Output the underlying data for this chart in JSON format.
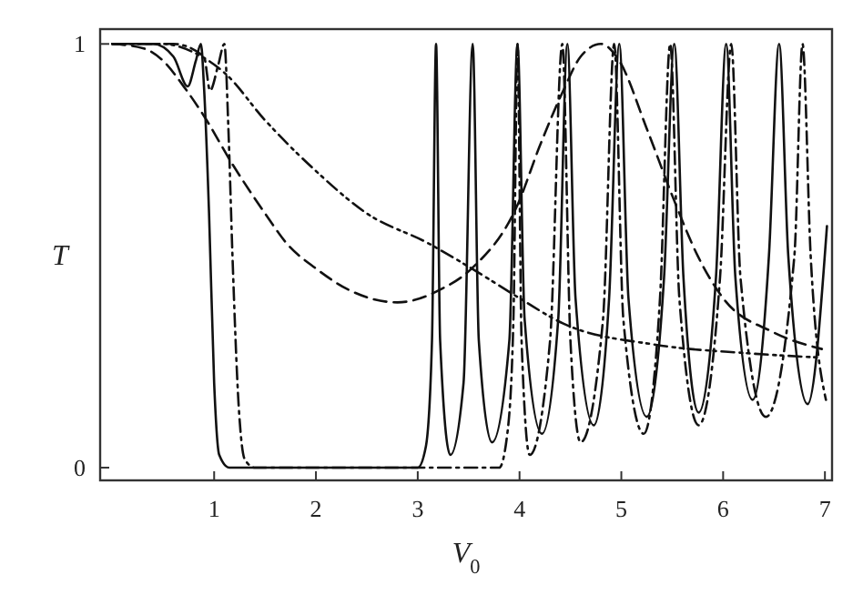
{
  "chart_data": {
    "type": "line",
    "xlabel": "V$_{0}$",
    "ylabel": "T",
    "xlim": [
      -0.12,
      7.07
    ],
    "ylim": [
      -0.03,
      1.035
    ],
    "xticks": [
      1,
      2,
      3,
      4,
      5,
      6,
      7
    ],
    "yticks": [
      0,
      1
    ],
    "marker": "none",
    "series": [
      {
        "color": "#111111",
        "line_style": "solid",
        "x": [
          0,
          0.4,
          0.6,
          0.74,
          0.82,
          0.87,
          0.9,
          0.95,
          1.0,
          1.05,
          1.15,
          3.0,
          3.08,
          3.14,
          3.18,
          3.22,
          3.32,
          3.45,
          3.54,
          3.6,
          3.73,
          3.9,
          3.98,
          4.05,
          4.22,
          4.38,
          4.47,
          4.55,
          4.73,
          4.88,
          4.98,
          5.07,
          5.25,
          5.42,
          5.52,
          5.61,
          5.76,
          5.93,
          6.03,
          6.12,
          6.29,
          6.45,
          6.55,
          6.64,
          6.83,
          7.02
        ],
        "values": [
          1,
          1,
          0.97,
          0.9,
          0.96,
          1,
          0.9,
          0.6,
          0.2,
          0.03,
          0,
          0,
          0.05,
          0.3,
          1,
          0.3,
          0.03,
          0.2,
          1,
          0.3,
          0.06,
          0.3,
          1,
          0.35,
          0.08,
          0.35,
          1,
          0.4,
          0.1,
          0.4,
          1,
          0.4,
          0.12,
          0.45,
          1,
          0.45,
          0.13,
          0.45,
          1,
          0.45,
          0.16,
          0.5,
          1,
          0.5,
          0.15,
          0.57
        ]
      },
      {
        "color": "#111111",
        "line_style": "dashdot",
        "x": [
          0,
          0.6,
          0.9,
          0.96,
          1.04,
          1.1,
          1.14,
          1.18,
          1.24,
          1.3,
          1.4,
          3.8,
          3.88,
          3.94,
          3.98,
          4.02,
          4.1,
          4.3,
          4.42,
          4.5,
          4.6,
          4.82,
          4.93,
          5.02,
          5.22,
          5.38,
          5.48,
          5.57,
          5.76,
          5.97,
          6.08,
          6.17,
          6.42,
          6.7,
          6.78,
          6.86,
          7.01
        ],
        "values": [
          1,
          1,
          0.97,
          0.89,
          0.95,
          1,
          0.8,
          0.5,
          0.15,
          0.02,
          0,
          0,
          0.08,
          0.35,
          1,
          0.3,
          0.03,
          0.3,
          1,
          0.3,
          0.06,
          0.35,
          1,
          0.35,
          0.08,
          0.4,
          1,
          0.4,
          0.1,
          0.45,
          1,
          0.45,
          0.12,
          0.5,
          1,
          0.5,
          0.16
        ]
      },
      {
        "color": "#111111",
        "line_style": "dashed",
        "x": [
          0,
          0.3,
          0.5,
          0.7,
          0.9,
          1.17,
          1.5,
          1.71,
          2.0,
          2.32,
          2.8,
          3.22,
          3.53,
          3.98,
          4.2,
          4.43,
          4.6,
          4.8,
          4.98,
          5.25,
          5.52,
          5.75,
          6.0,
          6.49,
          6.97
        ],
        "values": [
          1,
          0.99,
          0.96,
          0.9,
          0.83,
          0.72,
          0.6,
          0.53,
          0.47,
          0.42,
          0.39,
          0.42,
          0.47,
          0.62,
          0.76,
          0.89,
          0.97,
          1,
          0.96,
          0.8,
          0.63,
          0.5,
          0.4,
          0.32,
          0.28
        ]
      },
      {
        "color": "#111111",
        "line_style": "dashdotdot",
        "x": [
          0,
          0.5,
          0.8,
          1.11,
          1.5,
          2.0,
          2.5,
          3.1,
          3.53,
          4.0,
          4.43,
          5.34,
          6.24,
          6.94
        ],
        "values": [
          1,
          1,
          0.98,
          0.93,
          0.82,
          0.7,
          0.6,
          0.53,
          0.47,
          0.4,
          0.34,
          0.29,
          0.27,
          0.26
        ]
      }
    ]
  }
}
